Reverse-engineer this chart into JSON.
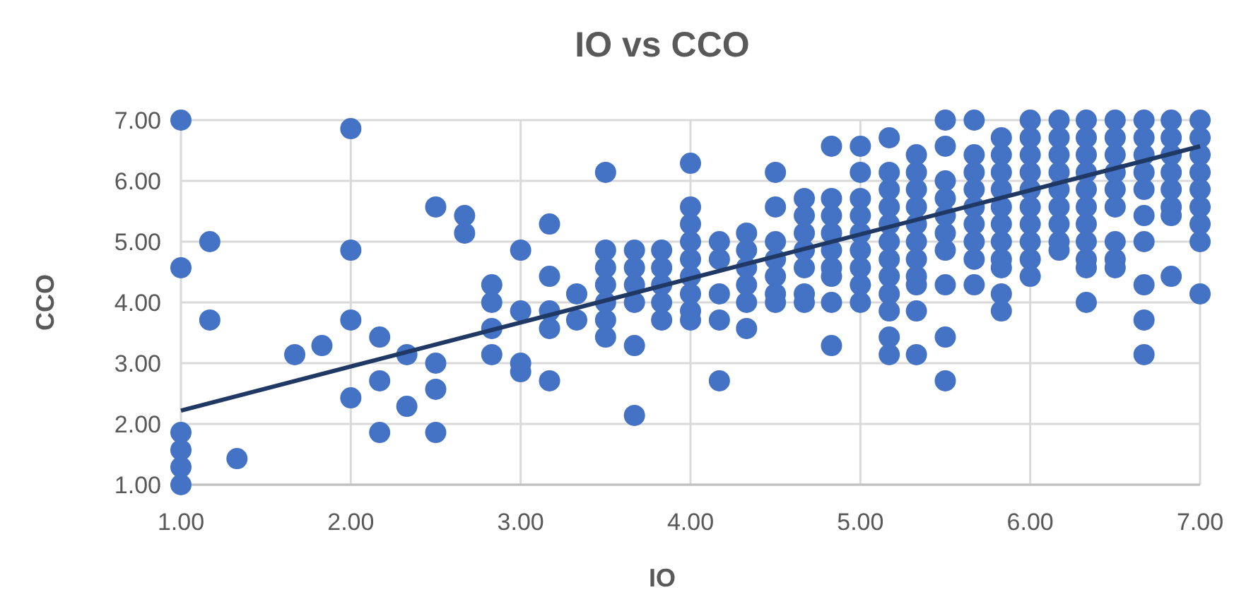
{
  "chart_data": {
    "type": "scatter",
    "title": "IO vs CCO",
    "xlabel": "IO",
    "ylabel": "CCO",
    "xlim": [
      1,
      7
    ],
    "ylim": [
      1,
      7
    ],
    "xticks": [
      {
        "value": 1,
        "label": "1.00"
      },
      {
        "value": 2,
        "label": "2.00"
      },
      {
        "value": 3,
        "label": "3.00"
      },
      {
        "value": 4,
        "label": "4.00"
      },
      {
        "value": 5,
        "label": "5.00"
      },
      {
        "value": 6,
        "label": "6.00"
      },
      {
        "value": 7,
        "label": "7.00"
      }
    ],
    "yticks": [
      {
        "value": 1,
        "label": "1.00"
      },
      {
        "value": 2,
        "label": "2.00"
      },
      {
        "value": 3,
        "label": "3.00"
      },
      {
        "value": 4,
        "label": "4.00"
      },
      {
        "value": 5,
        "label": "5.00"
      },
      {
        "value": 6,
        "label": "6.00"
      },
      {
        "value": 7,
        "label": "7.00"
      }
    ],
    "grid": true,
    "series": [
      {
        "color": "#4472c4",
        "marker": "circle",
        "x": [
          1,
          1,
          1,
          1,
          1,
          1,
          1.17,
          1.17,
          1.33,
          1.67,
          1.83,
          2,
          2,
          2,
          2,
          2.17,
          2.17,
          2.17,
          2.33,
          2.33,
          2.5,
          2.5,
          2.5,
          2.5,
          2.67,
          2.67,
          2.83,
          2.83,
          2.83,
          2.83,
          3,
          3,
          3,
          3,
          3.17,
          3.17,
          3.17,
          3.17,
          3.17,
          3.33,
          3.33,
          3.5,
          3.5,
          3.5,
          3.5,
          3.5,
          3.5,
          3.5,
          3.67,
          3.67,
          3.67,
          3.67,
          3.67,
          3.67,
          3.83,
          3.83,
          3.83,
          3.83,
          3.83,
          4,
          4,
          4,
          4,
          4,
          4,
          4,
          4,
          4,
          4.17,
          4.17,
          4.17,
          4.17,
          4.17,
          4.33,
          4.33,
          4.33,
          4.33,
          4.33,
          4.33,
          4.5,
          4.5,
          4.5,
          4.5,
          4.5,
          4.5,
          4.5,
          4.67,
          4.67,
          4.67,
          4.67,
          4.67,
          4.67,
          4.67,
          4.83,
          4.83,
          4.83,
          4.83,
          4.83,
          4.83,
          4.83,
          4.83,
          4.83,
          5,
          5,
          5,
          5,
          5,
          5,
          5,
          5,
          5,
          5.17,
          5.17,
          5.17,
          5.17,
          5.17,
          5.17,
          5.17,
          5.17,
          5.17,
          5.17,
          5.17,
          5.17,
          5.33,
          5.33,
          5.33,
          5.33,
          5.33,
          5.33,
          5.33,
          5.33,
          5.33,
          5.33,
          5.33,
          5.5,
          5.5,
          5.5,
          5.5,
          5.5,
          5.5,
          5.5,
          5.5,
          5.5,
          5.5,
          5.67,
          5.67,
          5.67,
          5.67,
          5.67,
          5.67,
          5.67,
          5.67,
          5.67,
          5.83,
          5.83,
          5.83,
          5.83,
          5.83,
          5.83,
          5.83,
          5.83,
          5.83,
          5.83,
          5.83,
          6,
          6,
          6,
          6,
          6,
          6,
          6,
          6,
          6,
          6,
          6.17,
          6.17,
          6.17,
          6.17,
          6.17,
          6.17,
          6.17,
          6.17,
          6.17,
          6.33,
          6.33,
          6.33,
          6.33,
          6.33,
          6.33,
          6.33,
          6.33,
          6.33,
          6.33,
          6.33,
          6.5,
          6.5,
          6.5,
          6.5,
          6.5,
          6.5,
          6.5,
          6.5,
          6.5,
          6.67,
          6.67,
          6.67,
          6.67,
          6.67,
          6.67,
          6.67,
          6.67,
          6.67,
          6.67,
          6.83,
          6.83,
          6.83,
          6.83,
          6.83,
          6.83,
          6.83,
          6.83,
          7,
          7,
          7,
          7,
          7,
          7,
          7,
          7,
          7
        ],
        "values": [
          7.0,
          4.57,
          1.86,
          1.57,
          1.29,
          1.0,
          5.0,
          3.71,
          1.43,
          3.14,
          3.29,
          6.86,
          4.86,
          3.71,
          2.43,
          3.43,
          2.71,
          1.86,
          3.14,
          2.29,
          5.57,
          3.0,
          2.57,
          1.86,
          5.43,
          5.14,
          4.29,
          4.0,
          3.57,
          3.14,
          4.86,
          3.86,
          3.0,
          2.86,
          5.29,
          4.43,
          3.86,
          3.57,
          2.71,
          4.14,
          3.71,
          6.14,
          4.86,
          4.57,
          4.29,
          4.0,
          3.71,
          3.43,
          4.86,
          4.57,
          4.29,
          4.0,
          3.29,
          2.14,
          4.86,
          4.57,
          4.29,
          4.0,
          3.71,
          6.29,
          5.57,
          5.29,
          5.0,
          4.71,
          4.43,
          4.14,
          3.86,
          3.71,
          5.0,
          4.71,
          4.14,
          3.71,
          2.71,
          5.14,
          4.86,
          4.57,
          4.29,
          4.0,
          3.57,
          6.14,
          5.57,
          5.0,
          4.71,
          4.43,
          4.14,
          4.0,
          5.71,
          5.43,
          5.14,
          4.86,
          4.57,
          4.14,
          4.0,
          6.57,
          5.71,
          5.43,
          5.14,
          4.86,
          4.57,
          4.43,
          4.0,
          3.29,
          6.57,
          6.14,
          5.71,
          5.43,
          5.14,
          4.86,
          4.57,
          4.29,
          4.0,
          6.71,
          6.14,
          5.86,
          5.57,
          5.29,
          5.0,
          4.71,
          4.43,
          4.14,
          3.86,
          3.43,
          3.14,
          6.43,
          6.14,
          5.86,
          5.57,
          5.29,
          5.0,
          4.71,
          4.43,
          4.29,
          3.86,
          3.14,
          7.0,
          6.57,
          6.0,
          5.71,
          5.43,
          5.14,
          4.86,
          4.29,
          3.43,
          2.71,
          7.0,
          6.43,
          6.14,
          5.86,
          5.57,
          5.29,
          5.0,
          4.71,
          4.29,
          6.71,
          6.43,
          6.14,
          5.86,
          5.57,
          5.29,
          5.0,
          4.71,
          4.57,
          4.14,
          3.86,
          7.0,
          6.71,
          6.43,
          6.14,
          5.86,
          5.57,
          5.29,
          5.0,
          4.71,
          4.43,
          7.0,
          6.71,
          6.43,
          6.14,
          5.86,
          5.57,
          5.29,
          5.0,
          4.86,
          7.0,
          6.71,
          6.43,
          6.14,
          5.86,
          5.57,
          5.29,
          5.0,
          4.71,
          4.57,
          4.0,
          7.0,
          6.71,
          6.43,
          6.14,
          5.86,
          5.57,
          5.0,
          4.71,
          4.57,
          7.0,
          6.71,
          6.43,
          6.14,
          5.86,
          5.43,
          5.0,
          4.29,
          3.71,
          3.14,
          7.0,
          6.71,
          6.43,
          6.14,
          5.86,
          5.57,
          5.43,
          4.43,
          7.0,
          6.71,
          6.43,
          6.14,
          5.86,
          5.57,
          5.29,
          5.0,
          4.14
        ]
      },
      {
        "type": "line",
        "color": "#1f3864",
        "x": [
          1,
          7
        ],
        "values": [
          2.22,
          6.57
        ]
      }
    ]
  }
}
